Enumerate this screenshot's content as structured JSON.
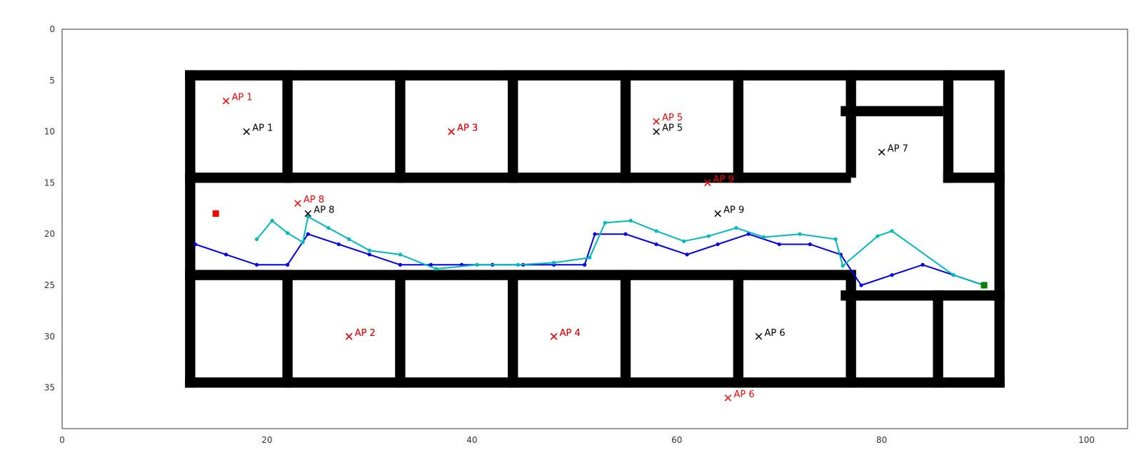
{
  "chart_data": {
    "type": "scatter",
    "title": "",
    "xlabel": "",
    "ylabel": "",
    "xlim": [
      0,
      104
    ],
    "ylim": [
      0,
      39
    ],
    "y_inverted": true,
    "grid": false,
    "x_ticks": [
      0,
      20,
      40,
      60,
      80,
      100
    ],
    "y_ticks": [
      0,
      5,
      10,
      15,
      20,
      25,
      30,
      35
    ],
    "walls": [
      [
        12,
        4,
        92,
        5
      ],
      [
        12,
        34,
        92,
        35
      ],
      [
        12,
        4,
        13,
        35
      ],
      [
        91,
        4,
        92,
        35
      ],
      [
        12,
        14,
        77,
        15
      ],
      [
        86,
        14,
        92,
        15
      ],
      [
        12,
        23.5,
        77,
        24.5
      ],
      [
        76,
        25.5,
        92,
        26.5
      ],
      [
        76,
        7.5,
        86,
        8.5
      ],
      [
        21.5,
        4,
        22.5,
        15
      ],
      [
        32.5,
        4,
        33.5,
        15
      ],
      [
        43.5,
        4,
        44.5,
        15
      ],
      [
        54.5,
        4,
        55.5,
        15
      ],
      [
        65.5,
        4,
        66.5,
        15
      ],
      [
        76.5,
        4,
        77.5,
        14.5
      ],
      [
        86,
        4,
        87,
        15
      ],
      [
        21.5,
        23.5,
        22.5,
        35
      ],
      [
        32.5,
        23.5,
        33.5,
        35
      ],
      [
        43.5,
        23.5,
        44.5,
        35
      ],
      [
        54.5,
        23.5,
        55.5,
        35
      ],
      [
        65.5,
        23.5,
        66.5,
        35
      ],
      [
        76.5,
        23.5,
        77.5,
        35
      ],
      [
        85,
        25.5,
        86,
        35
      ]
    ],
    "true_aps": [
      {
        "label": "AP 1",
        "x": 18,
        "y": 10
      },
      {
        "label": "AP 2",
        "x": 28,
        "y": 30
      },
      {
        "label": "AP 3",
        "x": 38,
        "y": 10
      },
      {
        "label": "AP 4",
        "x": 48,
        "y": 30
      },
      {
        "label": "AP 5",
        "x": 58,
        "y": 10
      },
      {
        "label": "AP 6",
        "x": 68,
        "y": 30
      },
      {
        "label": "AP 7",
        "x": 80,
        "y": 12
      },
      {
        "label": "AP 8",
        "x": 24,
        "y": 18
      },
      {
        "label": "AP 9",
        "x": 64,
        "y": 18
      }
    ],
    "estimated_aps": [
      {
        "label": "AP 1",
        "x": 16,
        "y": 7
      },
      {
        "label": "AP 2",
        "x": 28,
        "y": 30
      },
      {
        "label": "AP 3",
        "x": 38,
        "y": 10
      },
      {
        "label": "AP 4",
        "x": 48,
        "y": 30
      },
      {
        "label": "AP 5",
        "x": 58,
        "y": 9
      },
      {
        "label": "AP 6",
        "x": 65,
        "y": 36
      },
      {
        "label": "AP 8",
        "x": 23,
        "y": 17
      },
      {
        "label": "AP 9",
        "x": 63,
        "y": 15
      }
    ],
    "series": [
      {
        "color": "#0000ee",
        "x": [
          13,
          16,
          19,
          22,
          24,
          27,
          30,
          33,
          36,
          39,
          42,
          45,
          48,
          51,
          52,
          55,
          58,
          61,
          64,
          67,
          70,
          73,
          76,
          78,
          81,
          84,
          87,
          90
        ],
        "y": [
          21,
          22,
          23,
          23,
          20,
          21,
          22,
          23,
          23,
          23,
          23,
          23,
          23,
          23,
          20,
          20,
          21,
          22,
          21,
          20,
          21,
          21,
          22,
          25,
          24,
          23,
          24,
          25
        ]
      },
      {
        "color": "#00bbbb",
        "x": [
          19,
          20.5,
          22,
          23.5,
          24,
          26,
          28,
          30,
          33,
          36.5,
          40.5,
          44.5,
          48,
          51.5,
          53,
          55.5,
          58,
          60.7,
          63.1,
          65.8,
          68.5,
          72,
          75.5,
          76.2,
          79.6,
          81,
          87,
          90
        ],
        "y": [
          20.5,
          18.7,
          19.9,
          20.8,
          18.3,
          19.4,
          20.5,
          21.6,
          22.0,
          23.4,
          23.0,
          23.0,
          22.8,
          22.3,
          18.9,
          18.7,
          19.7,
          20.7,
          20.2,
          19.4,
          20.3,
          20.0,
          20.5,
          23.1,
          20.2,
          19.7,
          24.0,
          25.0
        ]
      }
    ],
    "start_marker": {
      "x": 15,
      "y": 18,
      "color": "#ff0000"
    },
    "end_marker": {
      "x": 90,
      "y": 25,
      "color": "#008000"
    },
    "colors": {
      "true_ap": "#000000",
      "estimated_ap": "#ff0000",
      "wall": "#000000",
      "axis": "#333333"
    }
  }
}
